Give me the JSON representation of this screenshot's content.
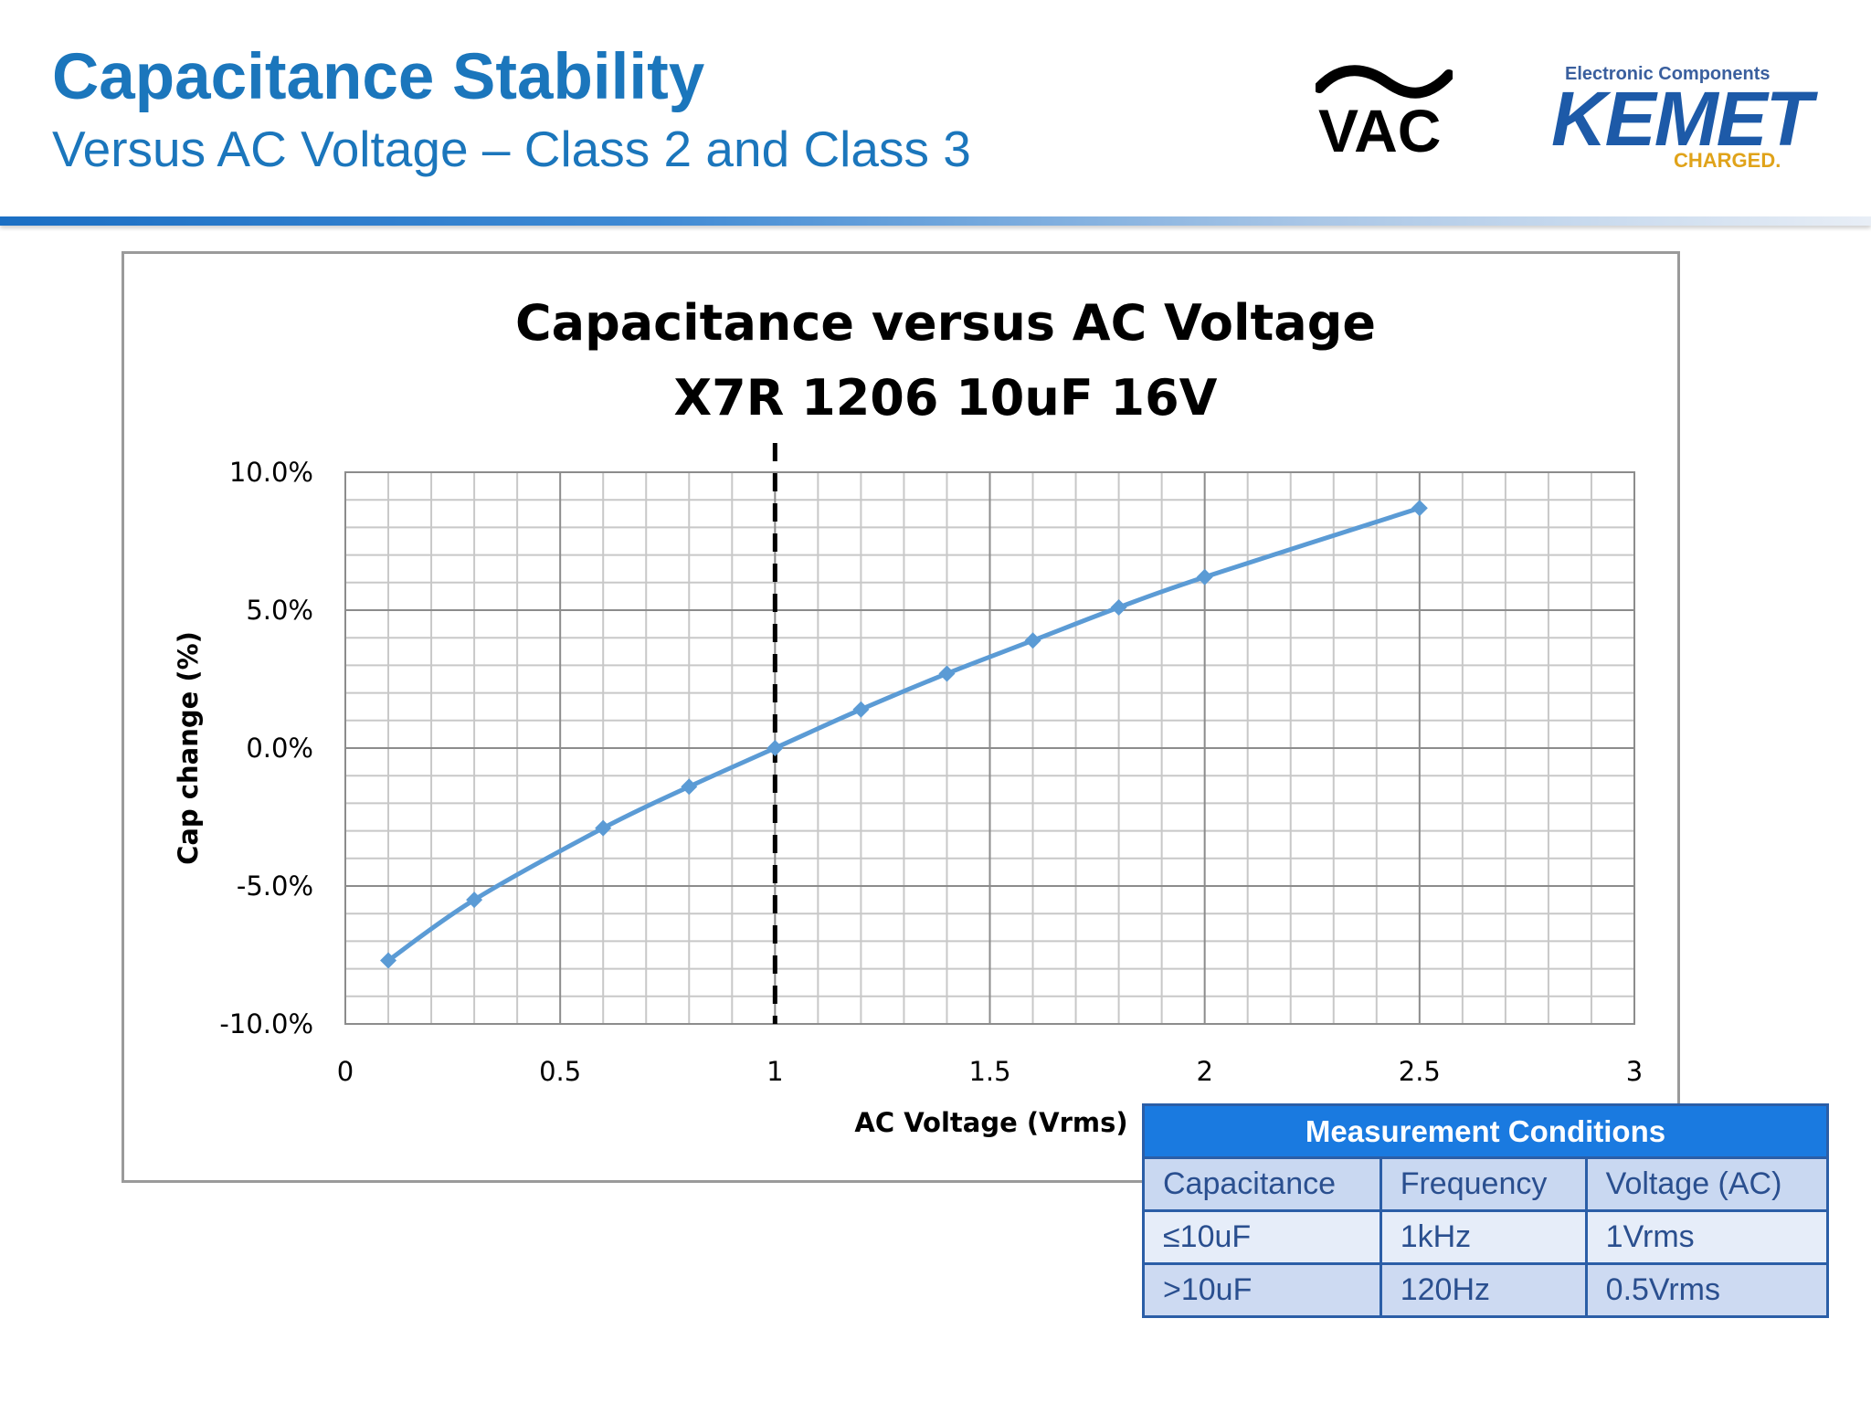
{
  "header": {
    "title": "Capacitance Stability",
    "subtitle": "Versus AC Voltage – Class 2 and Class 3",
    "vac_logo_text": "VAC",
    "kemet_tagline": "Electronic Components",
    "kemet_wordmark": "KEMET",
    "kemet_charged": "CHARGED."
  },
  "chart_data": {
    "type": "line",
    "title": [
      "Capacitance versus AC Voltage",
      "X7R 1206 10uF 16V"
    ],
    "xlabel": "AC Voltage (Vrms)",
    "ylabel": "Cap change (%)",
    "xlim": [
      0,
      3
    ],
    "ylim": [
      -10,
      10
    ],
    "x_ticks": [
      "0",
      "0.5",
      "1",
      "1.5",
      "2",
      "2.5",
      "3"
    ],
    "y_ticks": [
      "10.0%",
      "5.0%",
      "0.0%",
      "-5.0%",
      "-10.0%"
    ],
    "y_tick_values": [
      10,
      5,
      0,
      -5,
      -10
    ],
    "x_tick_values": [
      0,
      0.5,
      1,
      1.5,
      2,
      2.5,
      3
    ],
    "grid": true,
    "reference_line_x": 1,
    "series": [
      {
        "color": "#5b9bd5",
        "marker": "diamond",
        "x": [
          0.1,
          0.3,
          0.6,
          0.8,
          1.0,
          1.2,
          1.4,
          1.6,
          1.8,
          2.0,
          2.5
        ],
        "y": [
          -7.7,
          -5.5,
          -2.9,
          -1.4,
          0.0,
          1.4,
          2.7,
          3.9,
          5.1,
          6.2,
          8.7
        ]
      }
    ]
  },
  "measurement_table": {
    "title": "Measurement Conditions",
    "columns": [
      "Capacitance",
      "Frequency",
      "Voltage (AC)"
    ],
    "rows": [
      [
        "≤10uF",
        "1kHz",
        "1Vrms"
      ],
      [
        ">10uF",
        "120Hz",
        "0.5Vrms"
      ]
    ],
    "header_color": "#1a7ae0",
    "border_color": "#2b5ea7"
  }
}
